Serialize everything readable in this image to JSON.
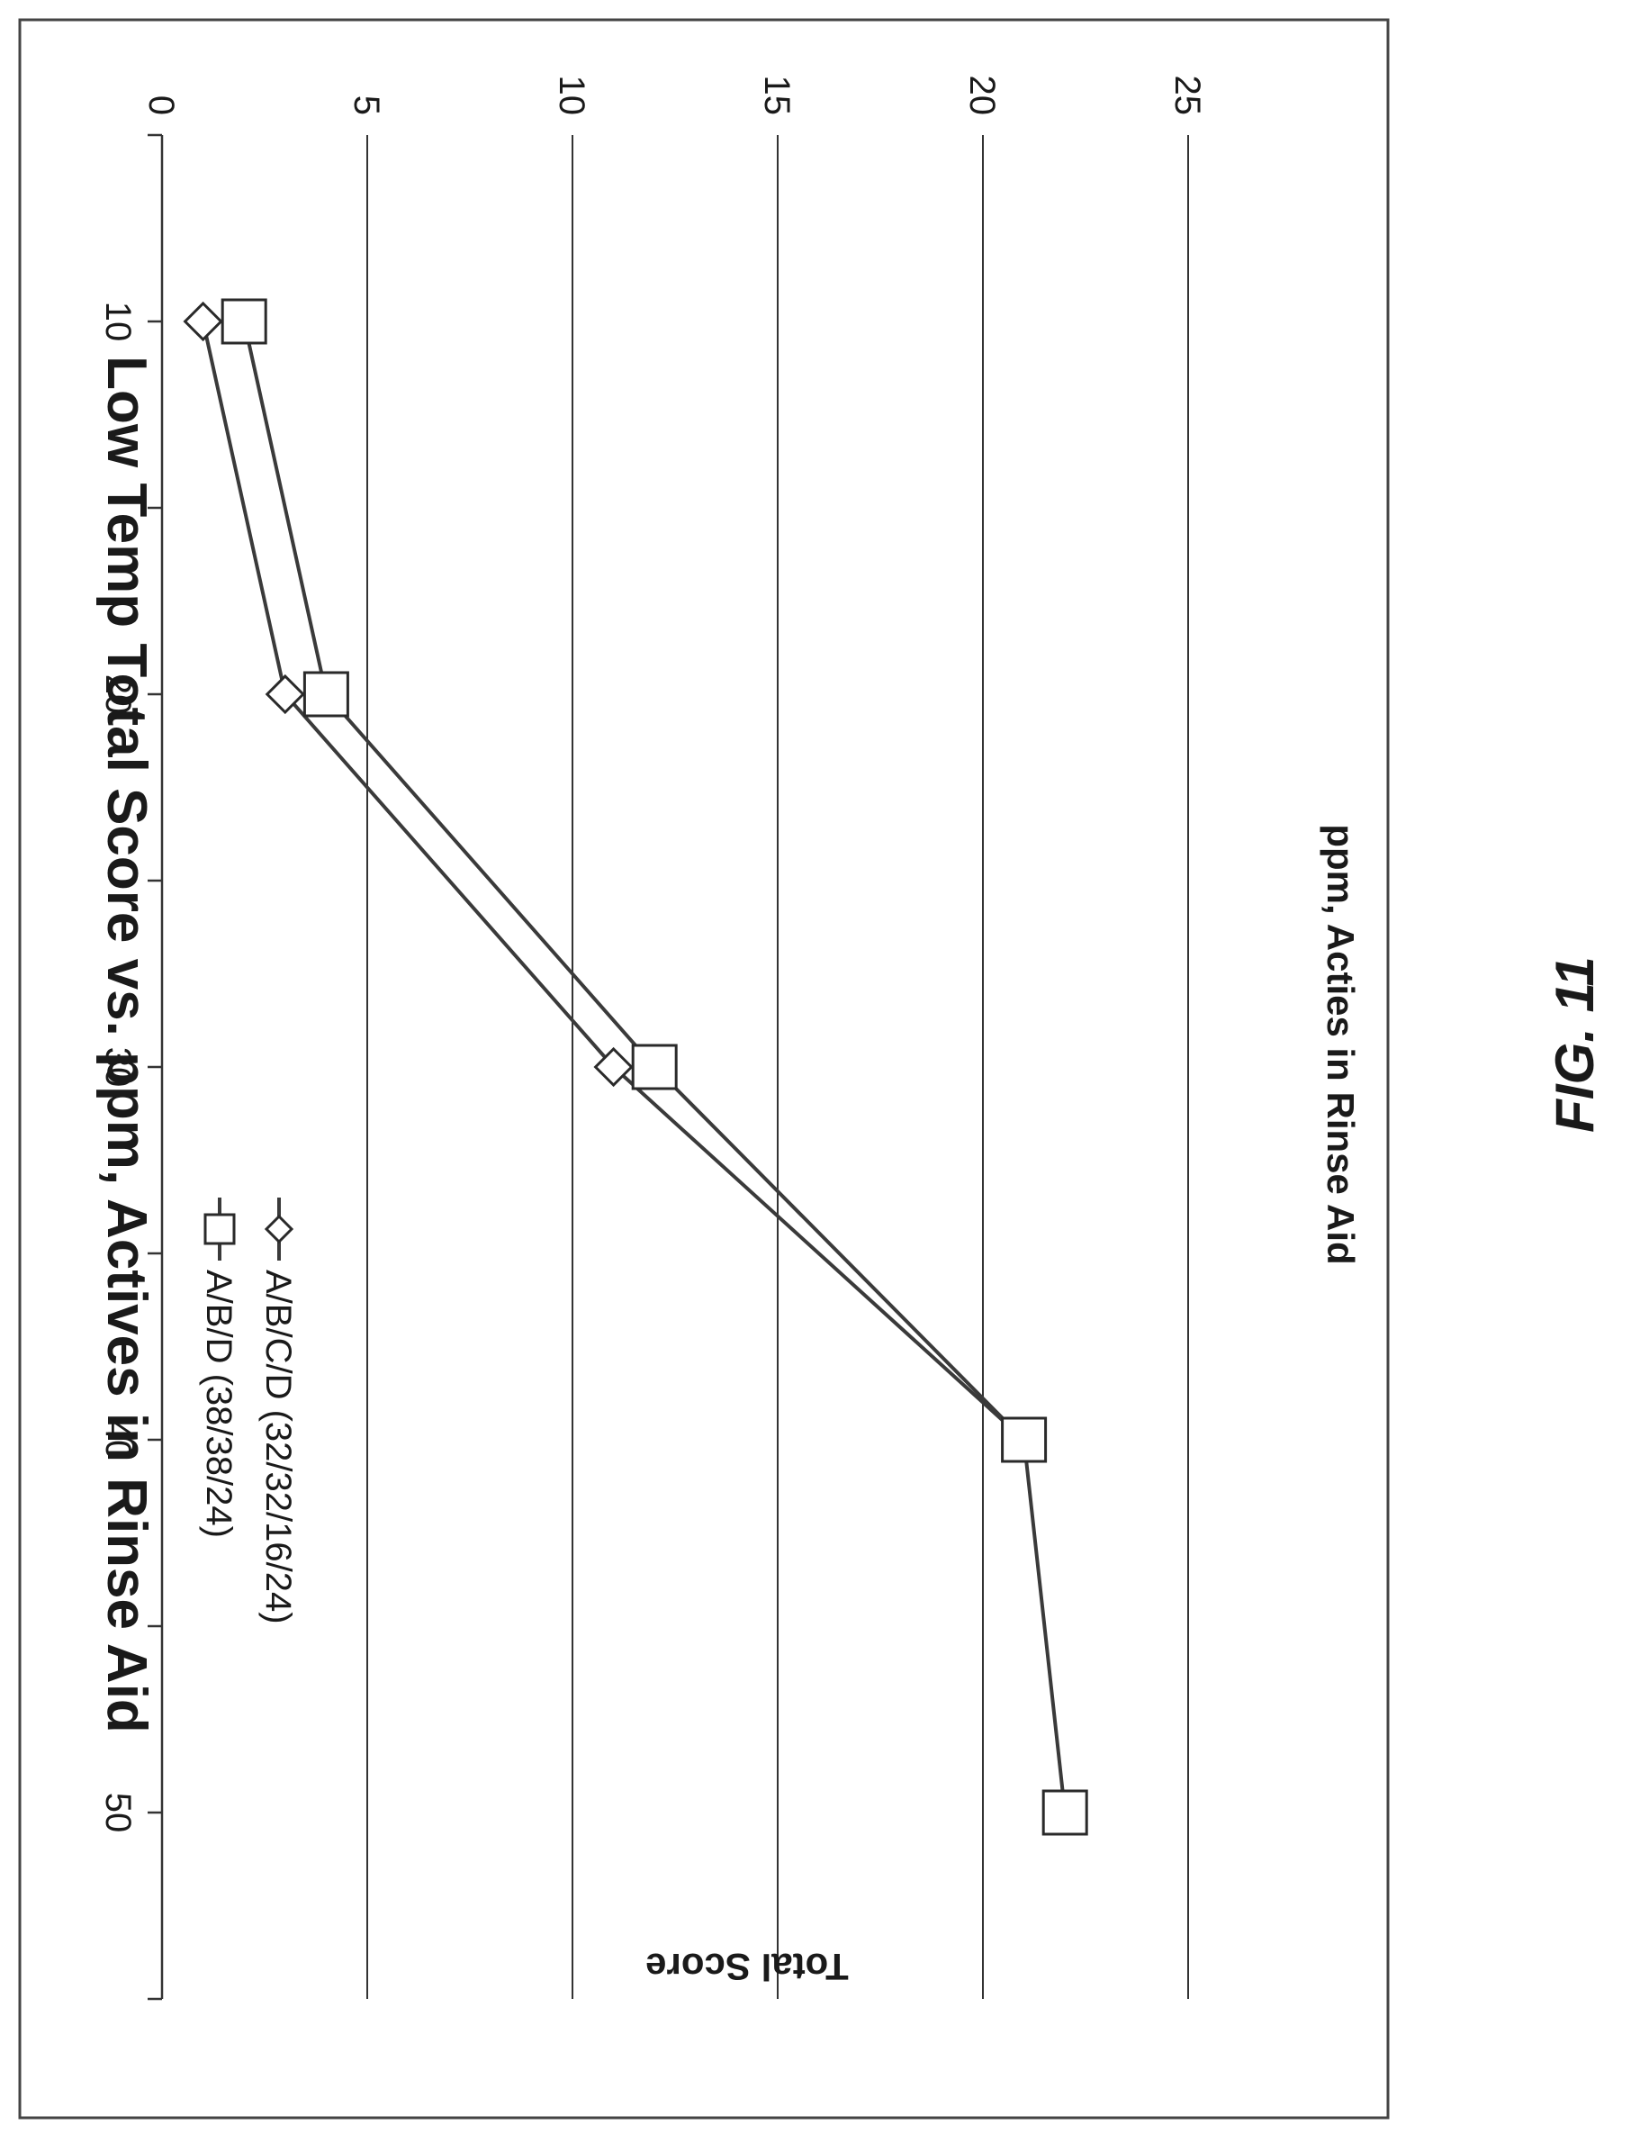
{
  "figure_caption": "FIG. 11",
  "chart_data": {
    "type": "line",
    "title": "Low Temp Total Score vs. ppm, Actives in Rinse Aid",
    "xlabel": "ppm, Acties in Rinse Aid",
    "ylabel": "Total Score",
    "xlim": [
      5,
      55
    ],
    "ylim": [
      0,
      25
    ],
    "x_ticks": [
      10,
      20,
      30,
      40,
      50
    ],
    "x_minor_ticks": [
      5,
      15,
      25,
      35,
      45,
      55
    ],
    "y_ticks": [
      0,
      5,
      10,
      15,
      20,
      25
    ],
    "grid": "horizontal",
    "legend_position": "right",
    "orientation": "rotated 90 degrees counter-clockwise on page",
    "series": [
      {
        "name": "A/B/C/D (32/32/16/24)",
        "marker": "diamond",
        "x": [
          10,
          20,
          30,
          40
        ],
        "y": [
          1,
          3,
          11,
          21
        ]
      },
      {
        "name": "A/B/D (38/38/24)",
        "marker": "square",
        "x": [
          10,
          20,
          30,
          40,
          50
        ],
        "y": [
          2,
          4,
          12,
          21,
          22
        ]
      }
    ]
  }
}
